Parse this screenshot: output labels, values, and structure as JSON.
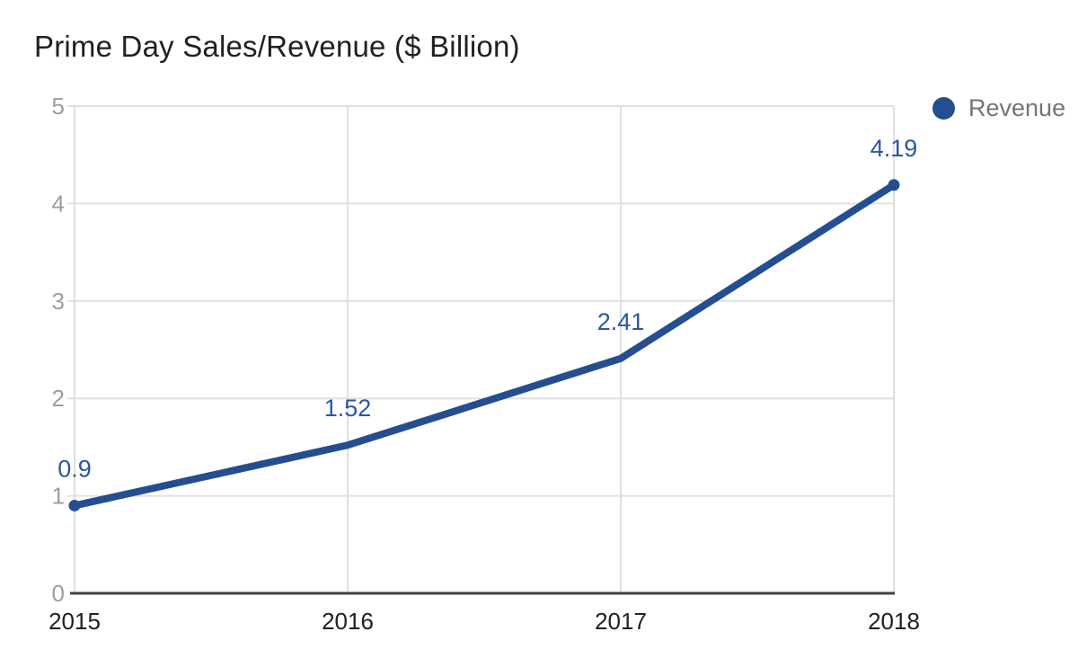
{
  "title": "Prime Day Sales/Revenue ($ Billion)",
  "legend": {
    "label": "Revenue"
  },
  "colors": {
    "series": "#254e91",
    "data_label": "#2b57a0",
    "grid": "#e0e0e0",
    "axis": "#424242",
    "y_tick_label": "#9e9e9e",
    "x_tick_label": "#212121",
    "legend_text": "#757575",
    "title_text": "#212121",
    "background": "#ffffff"
  },
  "chart_data": {
    "type": "line",
    "title": "Prime Day Sales/Revenue ($ Billion)",
    "x": [
      "2015",
      "2016",
      "2017",
      "2018"
    ],
    "series": [
      {
        "name": "Revenue",
        "values": [
          0.9,
          1.52,
          2.41,
          4.19
        ],
        "labels": [
          "0.9",
          "1.52",
          "2.41",
          "4.19"
        ]
      }
    ],
    "ylim": [
      0,
      5
    ],
    "yticks": [
      "0",
      "1",
      "2",
      "3",
      "4",
      "5"
    ],
    "xlabel": "",
    "ylabel": "",
    "grid": true,
    "legend_position": "top-right",
    "data_labels_shown": true
  }
}
